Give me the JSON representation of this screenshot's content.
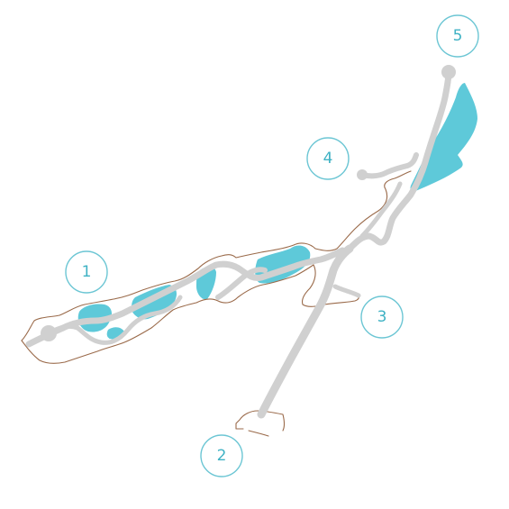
{
  "map": {
    "colors": {
      "water": "#5ec9d9",
      "walkway": "#d0d0d0",
      "cave_outline": "#9a6a4a",
      "marker_stroke": "#6cc6d4",
      "marker_text": "#3fb2c4"
    },
    "markers": [
      {
        "label": "1"
      },
      {
        "label": "2"
      },
      {
        "label": "3"
      },
      {
        "label": "4"
      },
      {
        "label": "5"
      }
    ]
  }
}
